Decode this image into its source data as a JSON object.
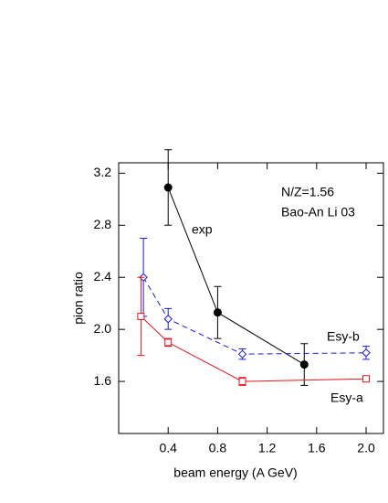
{
  "chart_data": {
    "type": "line",
    "xlabel": "beam energy (A GeV)",
    "ylabel": "pion ratio",
    "annotations": [
      {
        "text": "N/Z=1.56",
        "color": "#000000"
      },
      {
        "text": "Bao-An Li 03",
        "color": "#e8141c"
      }
    ],
    "xlim": [
      0,
      2.14
    ],
    "ylim": [
      1.2,
      3.28
    ],
    "xticks": [
      0.4,
      0.8,
      1.2,
      1.6,
      {
        "value": 2,
        "label": "2.0"
      }
    ],
    "yticks": [
      1.6,
      {
        "value": 2,
        "label": "2.0"
      },
      2.4,
      2.8,
      3.2
    ],
    "series": [
      {
        "name": "exp",
        "color": "#000000",
        "marker": "circle",
        "dashed": false,
        "x": [
          0.4,
          0.8,
          1.5
        ],
        "values": [
          3.09,
          2.13,
          1.73
        ],
        "errors": [
          0.29,
          0.2,
          0.16
        ]
      },
      {
        "name": "Esy-b",
        "color": "#1a1ae6",
        "marker": "diamond",
        "dashed": true,
        "x": [
          0.2,
          0.4,
          1.0,
          2.0
        ],
        "values": [
          2.4,
          2.08,
          1.81,
          1.82
        ],
        "errors": [
          0.3,
          0.08,
          0.04,
          0.05
        ]
      },
      {
        "name": "Esy-a",
        "color": "#e8141c",
        "marker": "square",
        "dashed": false,
        "x": [
          0.18,
          0.4,
          1.0,
          2.0
        ],
        "values": [
          2.1,
          1.9,
          1.6,
          1.62
        ],
        "errors": [
          0.3,
          0.03,
          0.03,
          0
        ]
      }
    ]
  }
}
